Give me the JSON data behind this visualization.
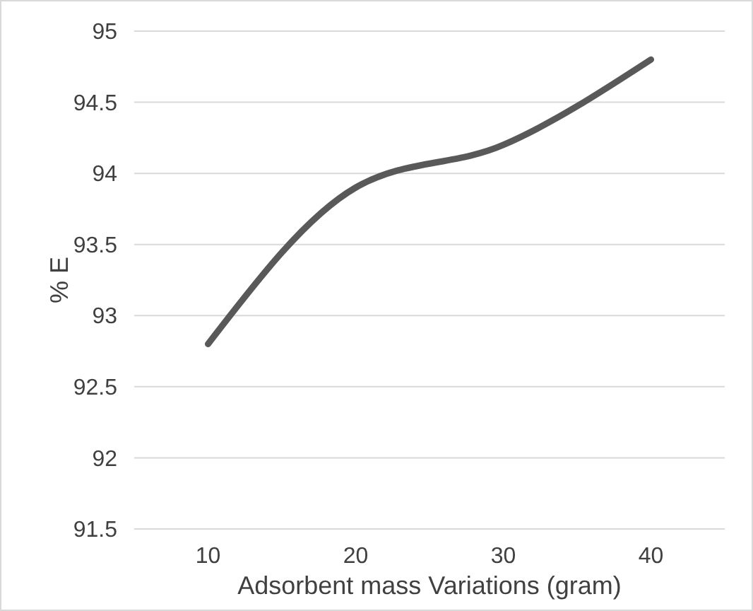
{
  "chart_data": {
    "type": "line",
    "xlabel": "Adsorbent mass Variations (gram)",
    "ylabel": "% E",
    "categories": [
      "10",
      "20",
      "30",
      "40"
    ],
    "series": [
      {
        "color": "#595959",
        "values": [
          92.8,
          93.9,
          94.2,
          94.8
        ]
      }
    ],
    "ylim": [
      91.5,
      95
    ],
    "yticks": [
      91.5,
      92,
      92.5,
      93,
      93.5,
      94,
      94.5,
      95
    ],
    "grid": "y",
    "marker": "none",
    "line_style": "solid"
  }
}
